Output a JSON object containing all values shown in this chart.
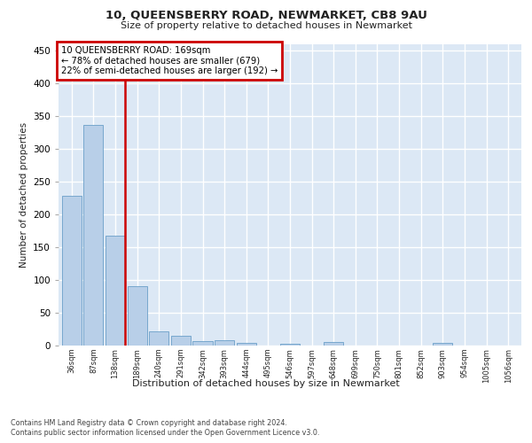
{
  "title": "10, QUEENSBERRY ROAD, NEWMARKET, CB8 9AU",
  "subtitle": "Size of property relative to detached houses in Newmarket",
  "xlabel": "Distribution of detached houses by size in Newmarket",
  "ylabel": "Number of detached properties",
  "bin_labels": [
    "36sqm",
    "87sqm",
    "138sqm",
    "189sqm",
    "240sqm",
    "291sqm",
    "342sqm",
    "393sqm",
    "444sqm",
    "495sqm",
    "546sqm",
    "597sqm",
    "648sqm",
    "699sqm",
    "750sqm",
    "801sqm",
    "852sqm",
    "903sqm",
    "954sqm",
    "1005sqm",
    "1056sqm"
  ],
  "bar_values": [
    228,
    337,
    168,
    91,
    22,
    15,
    7,
    8,
    4,
    0,
    3,
    0,
    5,
    0,
    0,
    0,
    0,
    4,
    0,
    0,
    0
  ],
  "bar_color": "#b8cfe8",
  "bar_edge_color": "#6a9fc8",
  "annotation_text1": "10 QUEENSBERRY ROAD: 169sqm",
  "annotation_text2": "← 78% of detached houses are smaller (679)",
  "annotation_text3": "22% of semi-detached houses are larger (192) →",
  "annotation_box_color": "#cc0000",
  "ylim": [
    0,
    460
  ],
  "yticks": [
    0,
    50,
    100,
    150,
    200,
    250,
    300,
    350,
    400,
    450
  ],
  "footnote1": "Contains HM Land Registry data © Crown copyright and database right 2024.",
  "footnote2": "Contains public sector information licensed under the Open Government Licence v3.0.",
  "bg_color": "#ffffff",
  "plot_bg_color": "#dce8f5",
  "grid_color": "#ffffff"
}
